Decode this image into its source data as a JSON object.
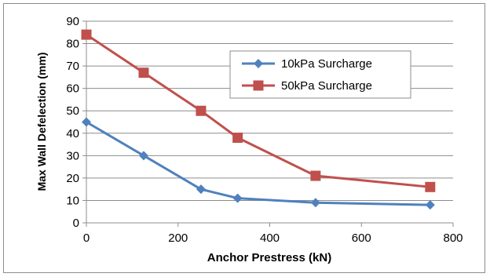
{
  "chart_data": {
    "type": "line",
    "title": "",
    "xlabel": "Anchor Prestress (kN)",
    "ylabel": "Max Wall Defelection (mm)",
    "xlim": [
      0,
      800
    ],
    "ylim": [
      0,
      90
    ],
    "xticks": [
      "0",
      "200",
      "400",
      "600",
      "800"
    ],
    "yticks": [
      "0",
      "10",
      "20",
      "30",
      "40",
      "50",
      "60",
      "70",
      "80",
      "90"
    ],
    "grid": true,
    "legend_position": "top-right",
    "series": [
      {
        "name": "10kPa Surcharge",
        "color": "#4f81bd",
        "marker": "diamond",
        "x": [
          0,
          125,
          250,
          330,
          500,
          750
        ],
        "y": [
          45,
          30,
          15,
          11,
          9,
          8
        ]
      },
      {
        "name": "50kPa Surcharge",
        "color": "#c0504d",
        "marker": "square",
        "x": [
          0,
          125,
          250,
          330,
          500,
          750
        ],
        "y": [
          84,
          67,
          50,
          38,
          21,
          16
        ]
      }
    ]
  }
}
